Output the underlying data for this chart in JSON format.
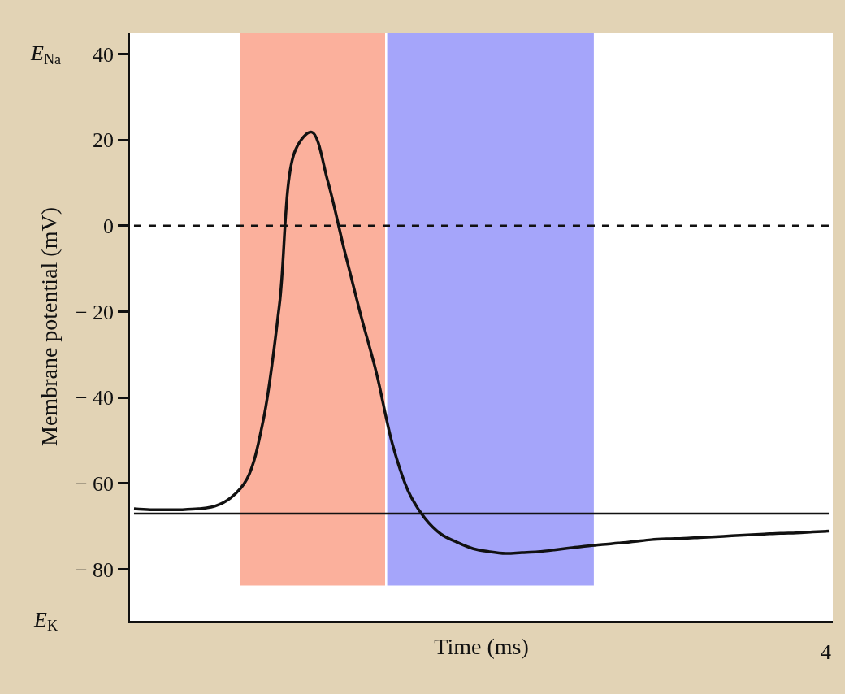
{
  "chart_data": {
    "type": "line",
    "xlabel": "Time (ms)",
    "ylabel": "Membrane potential (mV)",
    "categories": [
      null,
      null,
      null,
      null,
      null,
      null,
      null,
      null,
      null,
      null,
      null,
      null,
      null,
      null,
      null,
      null,
      null,
      null,
      null,
      null,
      null,
      null,
      null,
      null,
      null,
      null,
      null,
      null,
      null,
      null,
      null,
      null,
      null,
      null,
      null,
      null,
      null,
      null,
      null,
      null,
      null,
      null,
      null,
      null
    ],
    "ylim": [
      -92,
      45
    ],
    "yticks": [
      40,
      20,
      0,
      {
        "value": -20,
        "label": "− 20"
      },
      {
        "value": -40,
        "label": "− 40"
      },
      {
        "value": -60,
        "label": "− 60"
      },
      {
        "value": -80,
        "label": "− 80"
      }
    ],
    "series": [
      {
        "color": "#111111",
        "values": [
          -65.9,
          -66.1,
          -66.1,
          -66.1,
          -65.9,
          -65.3,
          -63.3,
          -58.9,
          -45.3,
          -18.4,
          17.7,
          21.8,
          10.3,
          -5.4,
          -20.3,
          -34.2,
          -50.9,
          -62.0,
          -68.1,
          -71.8,
          -73.7,
          -75.2,
          -75.9,
          -76.3,
          -76.1,
          -75.9,
          -75.5,
          -75.0,
          -74.6,
          -74.2,
          -73.9,
          -73.5,
          -73.1,
          -72.9,
          -72.8,
          -72.6,
          -72.4,
          -72.2,
          -72.0,
          -71.8,
          -71.6,
          -71.5,
          -71.3,
          -71.1
        ]
      }
    ],
    "ref_lines": [
      {
        "axis": "y",
        "value": 0,
        "color": "#111111",
        "line_style": "dashed"
      },
      {
        "axis": "y",
        "value": -67,
        "color": "#111111",
        "line_style": "solid"
      }
    ],
    "annotations": [
      "E$_{Na}$",
      "E$_{K}$",
      "4"
    ],
    "grid": false,
    "marker": "none",
    "line_style": "solid"
  }
}
